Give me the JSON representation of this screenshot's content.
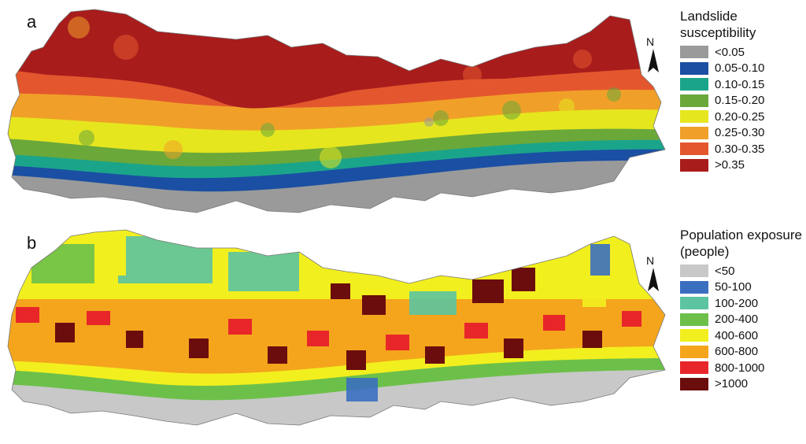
{
  "panel_a": {
    "letter": "a",
    "legend": {
      "title_line1": "Landslide",
      "title_line2": "susceptibility",
      "items": [
        {
          "label": "<0.05",
          "color": "#9a9a9a"
        },
        {
          "label": "0.05-0.10",
          "color": "#1a4fa3"
        },
        {
          "label": "0.10-0.15",
          "color": "#1aa58a"
        },
        {
          "label": "0.15-0.20",
          "color": "#6aa83a"
        },
        {
          "label": "0.20-0.25",
          "color": "#e6e61e"
        },
        {
          "label": "0.25-0.30",
          "color": "#f0a028"
        },
        {
          "label": "0.30-0.35",
          "color": "#e4572e"
        },
        {
          "label": ">0.35",
          "color": "#a81c1c"
        }
      ]
    },
    "north_label": "N"
  },
  "panel_b": {
    "letter": "b",
    "legend": {
      "title_line1": "Population exposure",
      "title_line2": "(people)",
      "items": [
        {
          "label": "<50",
          "color": "#c8c8c8"
        },
        {
          "label": "50-100",
          "color": "#3a6fc0"
        },
        {
          "label": "100-200",
          "color": "#5cc4a0"
        },
        {
          "label": "200-400",
          "color": "#6cc04a"
        },
        {
          "label": "400-600",
          "color": "#f2ef1e"
        },
        {
          "label": "600-800",
          "color": "#f4a51c"
        },
        {
          "label": "800-1000",
          "color": "#e8262a"
        },
        {
          "label": ">1000",
          "color": "#6b0d0d"
        }
      ]
    },
    "north_label": "N"
  }
}
